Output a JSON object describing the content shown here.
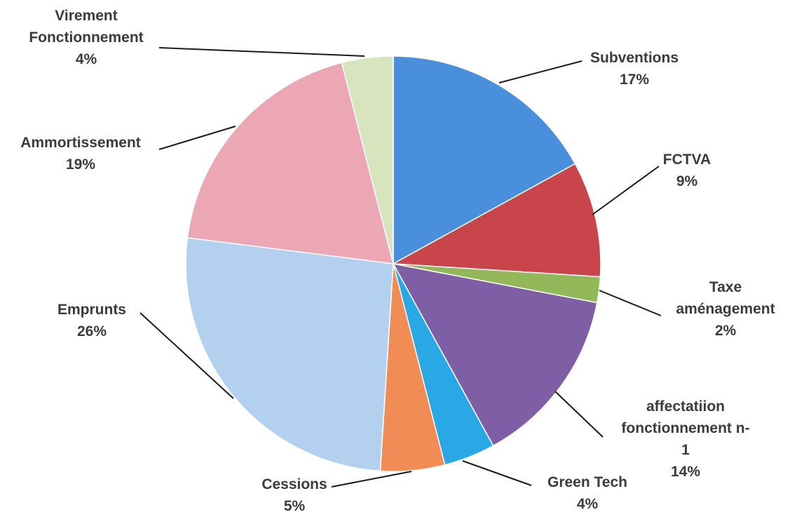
{
  "chart_data": {
    "type": "pie",
    "start_angle_deg": 0,
    "direction": "clockwise",
    "slices": [
      {
        "label": [
          "Subventions"
        ],
        "pct_label": "17%",
        "value": 17,
        "color": "#4a8fdc"
      },
      {
        "label": [
          "FCTVA"
        ],
        "pct_label": "9%",
        "value": 9,
        "color": "#c8464b"
      },
      {
        "label": [
          "Taxe",
          "aménagement"
        ],
        "pct_label": "2%",
        "value": 2,
        "color": "#92b85a"
      },
      {
        "label": [
          "affectatiion",
          "fonctionnement n-",
          "1"
        ],
        "pct_label": "14%",
        "value": 14,
        "color": "#7e5fa5"
      },
      {
        "label": [
          "Green Tech"
        ],
        "pct_label": "4%",
        "value": 4,
        "color": "#2aa8e6"
      },
      {
        "label": [
          "Cessions"
        ],
        "pct_label": "5%",
        "value": 5,
        "color": "#f28c56"
      },
      {
        "label": [
          "Emprunts"
        ],
        "pct_label": "26%",
        "value": 26,
        "color": "#b4d0ef"
      },
      {
        "label": [
          "Ammortissement"
        ],
        "pct_label": "19%",
        "value": 19,
        "color": "#eba7b4"
      },
      {
        "label": [
          "Virement",
          "Fonctionnement"
        ],
        "pct_label": "4%",
        "value": 4,
        "color": "#d7e4be"
      }
    ]
  }
}
